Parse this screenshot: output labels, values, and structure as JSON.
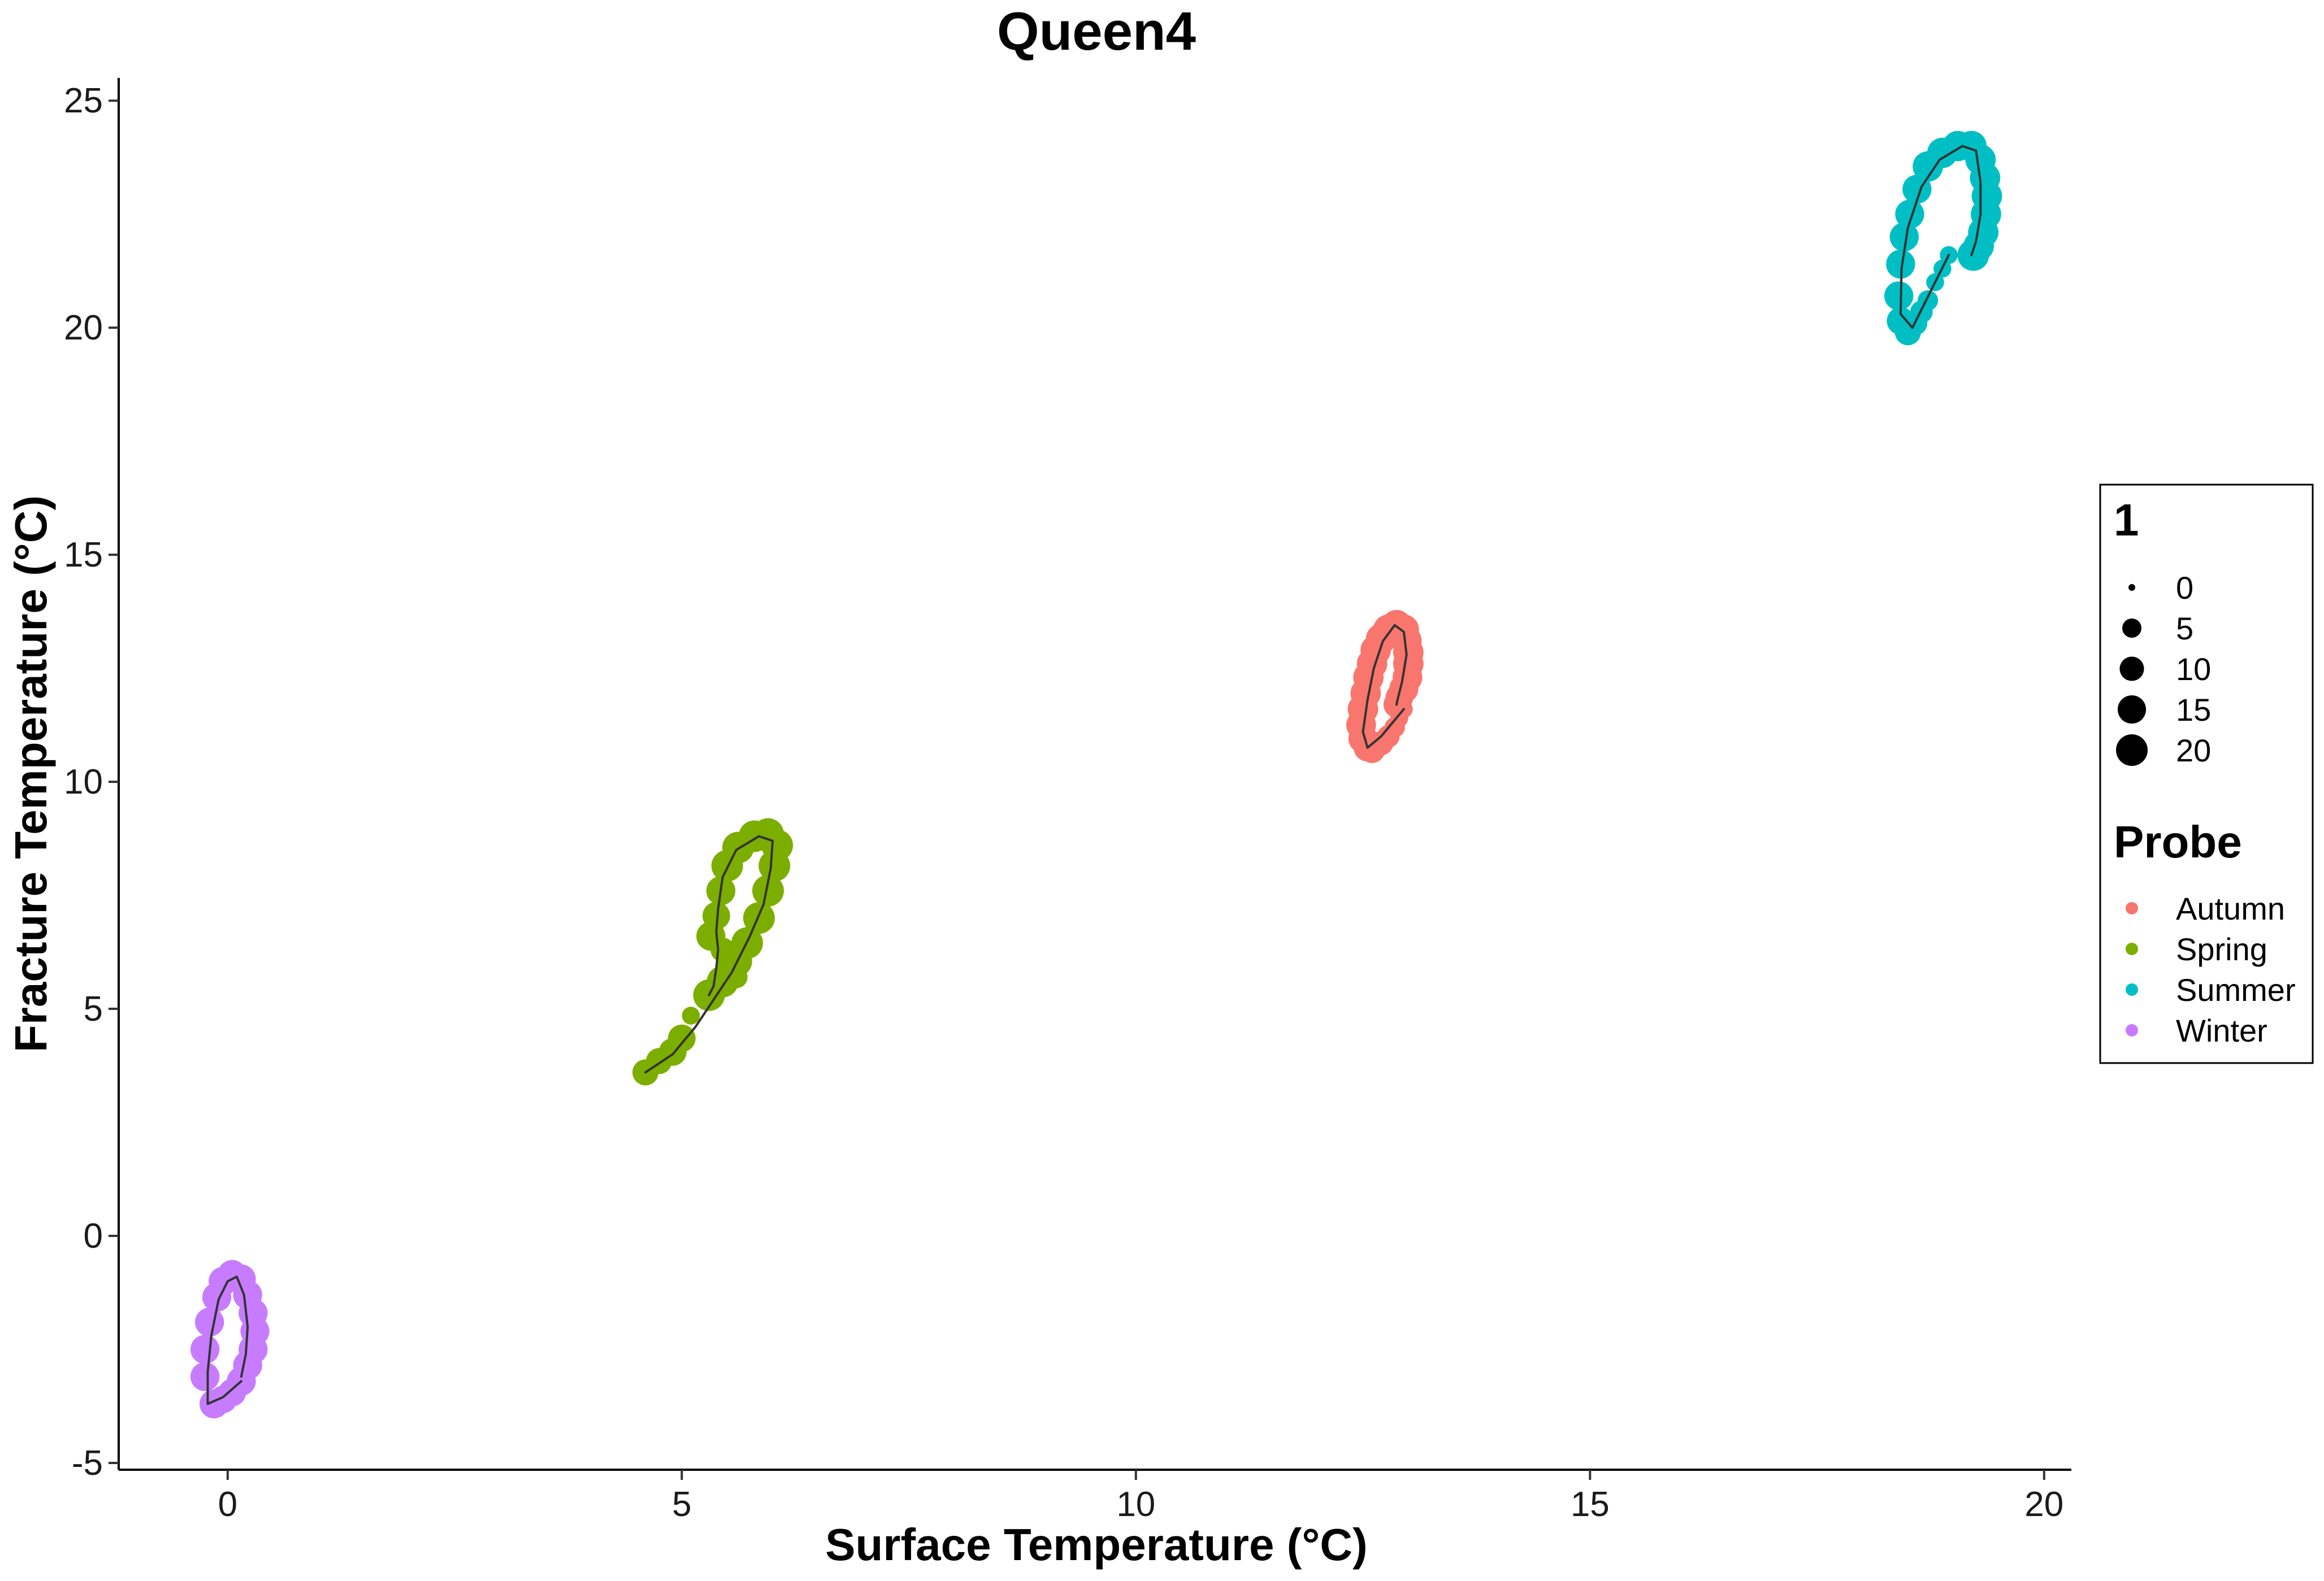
{
  "chart_data": {
    "type": "scatter",
    "title": "Queen4",
    "xlabel": "Surface Temperature (°C)",
    "ylabel": "Fracture Temperature (°C)",
    "xlim": [
      -1.2,
      20.3
    ],
    "ylim": [
      -5.15,
      25.5
    ],
    "x_ticks": [
      0,
      5,
      10,
      15,
      20
    ],
    "y_ticks": [
      -5,
      0,
      5,
      10,
      15,
      20,
      25
    ],
    "grid": false,
    "legend_position": "right",
    "size_legend": {
      "title": "1",
      "entries": [
        {
          "label": "0",
          "value": 0
        },
        {
          "label": "5",
          "value": 5
        },
        {
          "label": "10",
          "value": 10
        },
        {
          "label": "15",
          "value": 15
        },
        {
          "label": "20",
          "value": 20
        }
      ]
    },
    "color_legend": {
      "title": "Probe",
      "entries": [
        {
          "label": "Autumn",
          "color": "#F8766D"
        },
        {
          "label": "Spring",
          "color": "#7CAE00"
        },
        {
          "label": "Summer",
          "color": "#00BFC4"
        },
        {
          "label": "Winter",
          "color": "#C77CFF"
        }
      ]
    },
    "series": [
      {
        "name": "Autumn",
        "color": "#F8766D",
        "points": [
          [
            12.95,
            11.6,
            4
          ],
          [
            12.9,
            11.4,
            4
          ],
          [
            12.85,
            11.2,
            6
          ],
          [
            12.78,
            11.0,
            8
          ],
          [
            12.7,
            10.85,
            10
          ],
          [
            12.6,
            10.7,
            12
          ],
          [
            12.55,
            10.75,
            14
          ],
          [
            12.5,
            10.95,
            16
          ],
          [
            12.48,
            11.25,
            17
          ],
          [
            12.5,
            11.6,
            18
          ],
          [
            12.53,
            11.95,
            18
          ],
          [
            12.56,
            12.3,
            18
          ],
          [
            12.6,
            12.6,
            18
          ],
          [
            12.64,
            12.9,
            18
          ],
          [
            12.7,
            13.15,
            18
          ],
          [
            12.78,
            13.35,
            18
          ],
          [
            12.87,
            13.45,
            18
          ],
          [
            12.95,
            13.35,
            18
          ],
          [
            12.98,
            13.1,
            18
          ],
          [
            13.0,
            12.85,
            18
          ],
          [
            13.0,
            12.6,
            18
          ],
          [
            12.99,
            12.3,
            17
          ],
          [
            12.95,
            12.05,
            16
          ],
          [
            12.9,
            11.85,
            14
          ],
          [
            12.87,
            11.7,
            12
          ]
        ],
        "path": [
          [
            12.95,
            11.6
          ],
          [
            12.7,
            11.0
          ],
          [
            12.55,
            10.75
          ],
          [
            12.5,
            11.1
          ],
          [
            12.55,
            11.8
          ],
          [
            12.62,
            12.5
          ],
          [
            12.72,
            13.1
          ],
          [
            12.85,
            13.45
          ],
          [
            12.95,
            13.3
          ],
          [
            12.98,
            12.8
          ],
          [
            12.93,
            12.2
          ],
          [
            12.88,
            11.8
          ],
          [
            12.87,
            11.7
          ]
        ]
      },
      {
        "name": "Spring",
        "color": "#7CAE00",
        "points": [
          [
            4.6,
            3.6,
            12
          ],
          [
            4.75,
            3.85,
            12
          ],
          [
            4.9,
            4.05,
            14
          ],
          [
            5.0,
            4.35,
            14
          ],
          [
            5.1,
            4.85,
            4
          ],
          [
            5.3,
            5.3,
            20
          ],
          [
            5.45,
            5.6,
            20
          ],
          [
            5.6,
            6.05,
            20
          ],
          [
            5.72,
            6.45,
            20
          ],
          [
            5.85,
            7.0,
            20
          ],
          [
            5.95,
            7.6,
            20
          ],
          [
            6.02,
            8.15,
            20
          ],
          [
            6.05,
            8.6,
            20
          ],
          [
            5.95,
            8.85,
            20
          ],
          [
            5.8,
            8.8,
            20
          ],
          [
            5.62,
            8.55,
            20
          ],
          [
            5.5,
            8.15,
            20
          ],
          [
            5.43,
            7.6,
            16
          ],
          [
            5.38,
            7.05,
            14
          ],
          [
            5.32,
            6.6,
            16
          ],
          [
            5.45,
            6.3,
            10
          ],
          [
            5.5,
            6.0,
            8
          ],
          [
            5.6,
            5.7,
            8
          ]
        ],
        "path": [
          [
            4.6,
            3.6
          ],
          [
            4.9,
            4.0
          ],
          [
            5.15,
            4.6
          ],
          [
            5.35,
            5.2
          ],
          [
            5.55,
            5.8
          ],
          [
            5.75,
            6.6
          ],
          [
            5.9,
            7.3
          ],
          [
            5.98,
            8.1
          ],
          [
            6.0,
            8.7
          ],
          [
            5.85,
            8.8
          ],
          [
            5.6,
            8.5
          ],
          [
            5.45,
            7.9
          ],
          [
            5.4,
            7.2
          ],
          [
            5.38,
            6.7
          ],
          [
            5.4,
            6.3
          ],
          [
            5.38,
            5.9
          ],
          [
            5.35,
            5.5
          ],
          [
            5.3,
            5.3
          ]
        ]
      },
      {
        "name": "Summer",
        "color": "#00BFC4",
        "points": [
          [
            18.95,
            21.6,
            4
          ],
          [
            18.88,
            21.3,
            4
          ],
          [
            18.8,
            21.0,
            4
          ],
          [
            18.72,
            20.6,
            6
          ],
          [
            18.65,
            20.35,
            8
          ],
          [
            18.58,
            20.1,
            10
          ],
          [
            18.5,
            19.9,
            12
          ],
          [
            18.42,
            20.15,
            14
          ],
          [
            18.4,
            20.7,
            16
          ],
          [
            18.42,
            21.4,
            16
          ],
          [
            18.46,
            22.0,
            16
          ],
          [
            18.52,
            22.5,
            16
          ],
          [
            18.6,
            23.05,
            16
          ],
          [
            18.72,
            23.55,
            18
          ],
          [
            18.88,
            23.85,
            18
          ],
          [
            19.05,
            24.0,
            18
          ],
          [
            19.2,
            24.0,
            18
          ],
          [
            19.3,
            23.7,
            18
          ],
          [
            19.35,
            23.3,
            18
          ],
          [
            19.37,
            22.9,
            18
          ],
          [
            19.36,
            22.5,
            18
          ],
          [
            19.33,
            22.1,
            18
          ],
          [
            19.28,
            21.8,
            18
          ],
          [
            19.22,
            21.6,
            20
          ]
        ],
        "path": [
          [
            18.95,
            21.6
          ],
          [
            18.75,
            20.8
          ],
          [
            18.55,
            20.0
          ],
          [
            18.42,
            20.3
          ],
          [
            18.43,
            21.3
          ],
          [
            18.5,
            22.2
          ],
          [
            18.65,
            23.1
          ],
          [
            18.85,
            23.7
          ],
          [
            19.1,
            24.0
          ],
          [
            19.25,
            23.9
          ],
          [
            19.3,
            23.2
          ],
          [
            19.3,
            22.5
          ],
          [
            19.25,
            21.9
          ],
          [
            19.2,
            21.6
          ]
        ]
      },
      {
        "name": "Winter",
        "color": "#C77CFF",
        "points": [
          [
            0.15,
            -3.2,
            16
          ],
          [
            0.05,
            -3.45,
            14
          ],
          [
            -0.05,
            -3.6,
            14
          ],
          [
            -0.15,
            -3.7,
            16
          ],
          [
            -0.25,
            -3.1,
            16
          ],
          [
            -0.25,
            -2.5,
            16
          ],
          [
            -0.2,
            -1.9,
            16
          ],
          [
            -0.12,
            -1.35,
            16
          ],
          [
            -0.05,
            -1.0,
            16
          ],
          [
            0.05,
            -0.85,
            16
          ],
          [
            0.15,
            -0.95,
            16
          ],
          [
            0.22,
            -1.3,
            16
          ],
          [
            0.28,
            -1.7,
            16
          ],
          [
            0.3,
            -2.1,
            16
          ],
          [
            0.28,
            -2.5,
            16
          ],
          [
            0.22,
            -2.85,
            16
          ]
        ],
        "path": [
          [
            0.15,
            -3.2
          ],
          [
            -0.05,
            -3.55
          ],
          [
            -0.22,
            -3.7
          ],
          [
            -0.22,
            -3.0
          ],
          [
            -0.18,
            -2.2
          ],
          [
            -0.1,
            -1.4
          ],
          [
            0.0,
            -1.0
          ],
          [
            0.1,
            -0.9
          ],
          [
            0.18,
            -1.3
          ],
          [
            0.22,
            -2.0
          ],
          [
            0.2,
            -2.6
          ],
          [
            0.15,
            -3.1
          ]
        ]
      }
    ]
  }
}
